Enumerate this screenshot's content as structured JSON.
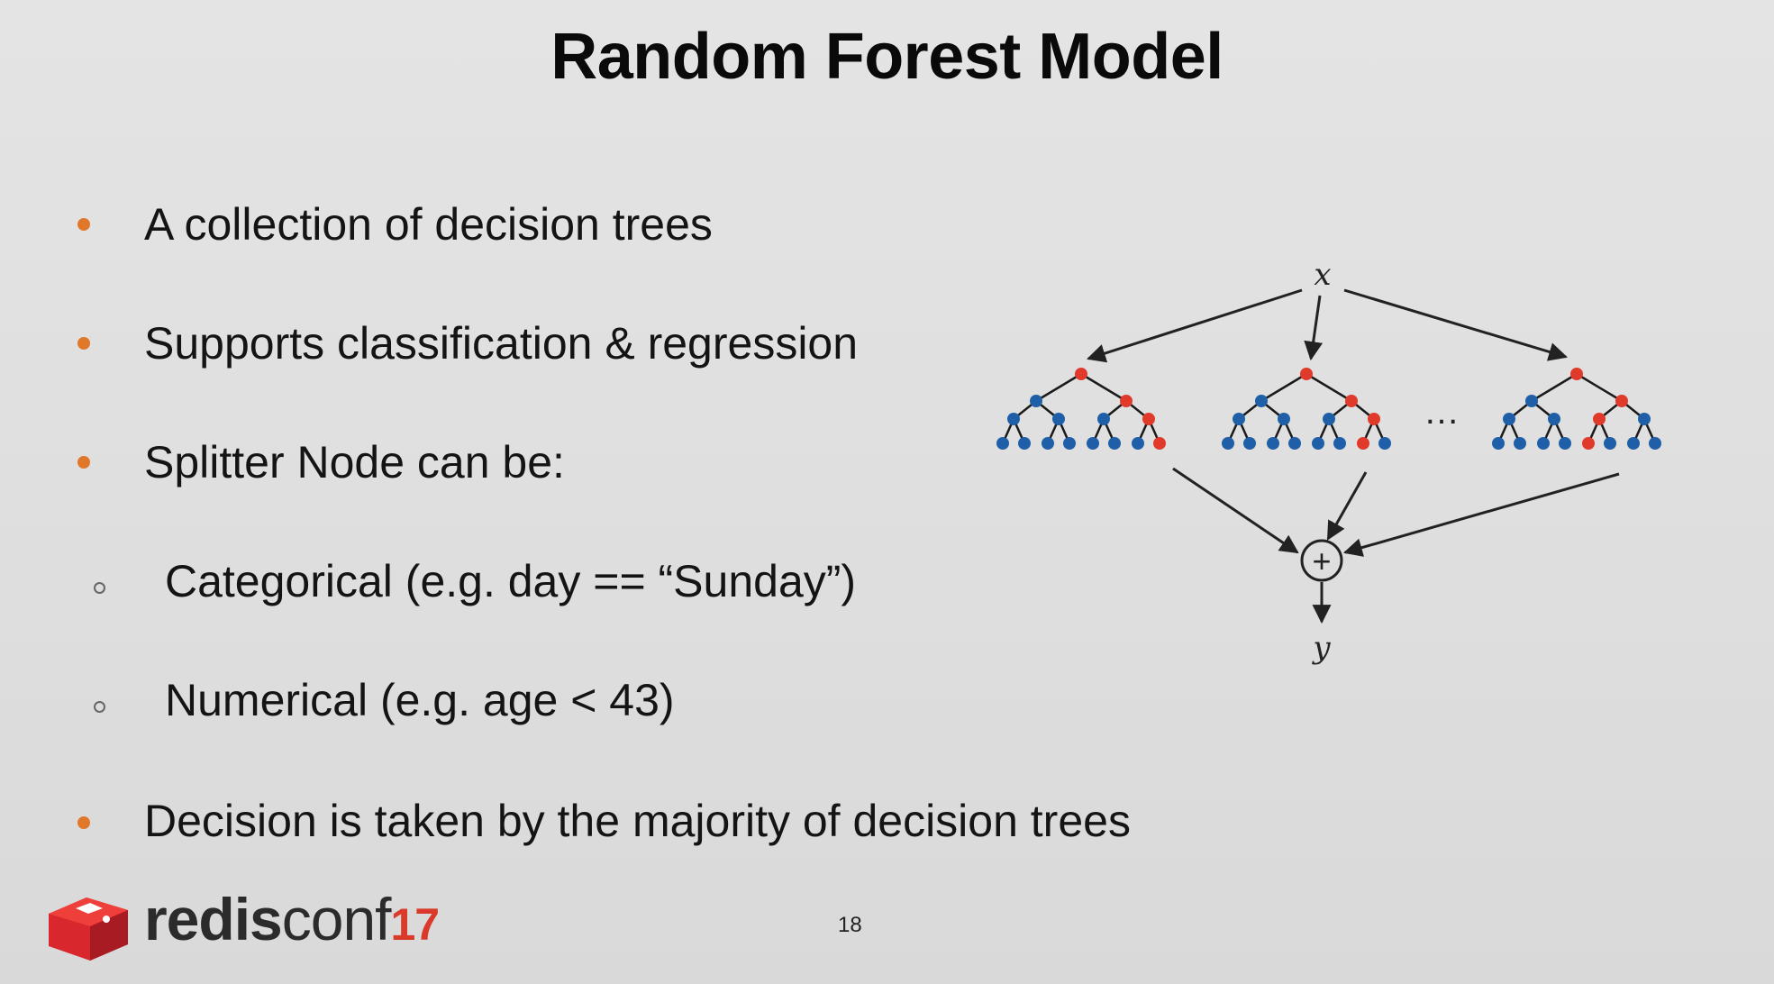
{
  "slide": {
    "title": "Random Forest Model",
    "bullets": [
      {
        "text": "A collection of decision trees",
        "level": 1
      },
      {
        "text": "Supports classification & regression",
        "level": 1
      },
      {
        "text": "Splitter Node can be:",
        "level": 1
      },
      {
        "text": "Categorical (e.g. day == “Sunday”)",
        "level": 2
      },
      {
        "text": "Numerical (e.g. age < 43)",
        "level": 2
      },
      {
        "text": "Decision is taken by the majority of decision trees",
        "level": 1
      }
    ],
    "diagram": {
      "input_label": "x",
      "output_label": "y",
      "ellipsis": "…",
      "combine_symbol": "+"
    },
    "footer": {
      "logo_bold": "redis",
      "logo_light": "conf",
      "logo_number": "17",
      "page_number": "18"
    }
  },
  "colors": {
    "bullet": "#e0782a",
    "node_path": "#e03a2a",
    "node_other": "#1f5fa8",
    "logo_red": "#d93a2a"
  }
}
